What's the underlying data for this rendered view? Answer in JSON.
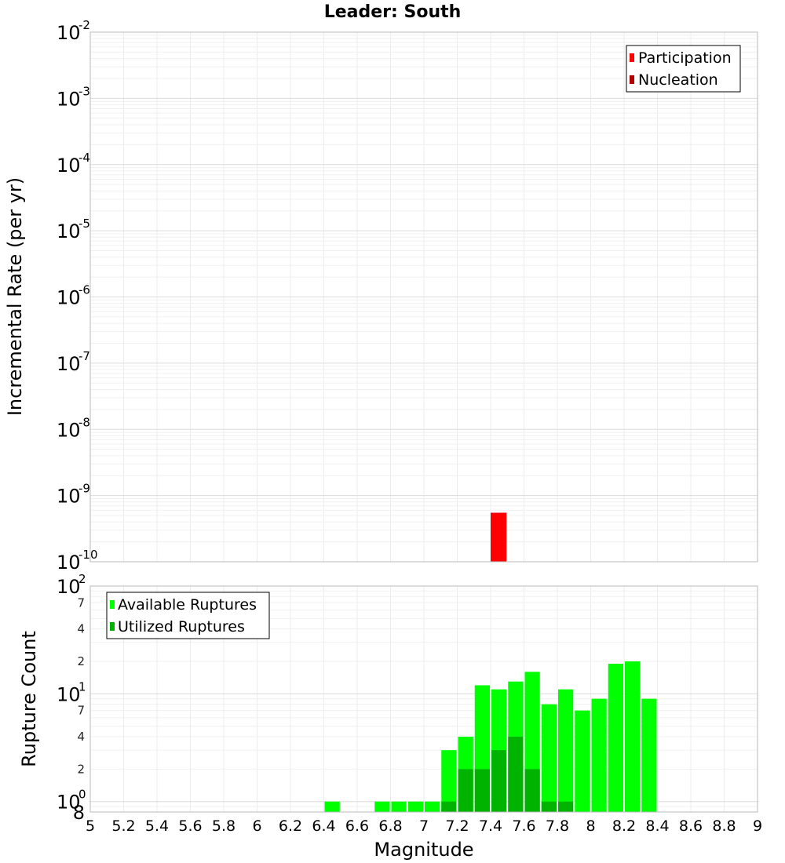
{
  "chart_data": [
    {
      "type": "bar",
      "title": "Leader: South",
      "xlabel": "",
      "ylabel": "Incremental Rate (per yr)",
      "y_scale": "log",
      "ylim": [
        1e-10,
        0.01
      ],
      "xlim": [
        5,
        9
      ],
      "grid": true,
      "legend_placement": "top-right",
      "x": [
        7.45
      ],
      "series": [
        {
          "name": "Participation",
          "color": "#ff0000",
          "values": [
            5.5e-10
          ]
        },
        {
          "name": "Nucleation",
          "color": "#b30000",
          "values": [
            0
          ]
        }
      ]
    },
    {
      "type": "bar",
      "title": "",
      "xlabel": "Magnitude",
      "ylabel": "Rupture Count",
      "y_scale": "log",
      "ylim": [
        0.8,
        100
      ],
      "xlim": [
        5,
        9
      ],
      "grid": true,
      "legend_placement": "top-left",
      "x": [
        6.45,
        6.75,
        6.85,
        6.95,
        7.05,
        7.15,
        7.25,
        7.35,
        7.45,
        7.55,
        7.65,
        7.75,
        7.85,
        7.95,
        8.05,
        8.15,
        8.25,
        8.35
      ],
      "series": [
        {
          "name": "Available Ruptures",
          "color": "#00ff00",
          "values": [
            1,
            1,
            1,
            1,
            1,
            3,
            4,
            12,
            11,
            13,
            16,
            8,
            11,
            7,
            9,
            19,
            20,
            9
          ]
        },
        {
          "name": "Utilized Ruptures",
          "color": "#00b300",
          "values": [
            0,
            0,
            0,
            0,
            0,
            1,
            2,
            2,
            3,
            4,
            2,
            1,
            1,
            0,
            0,
            0,
            0,
            0
          ]
        }
      ]
    }
  ],
  "x_tick_labels": [
    "5",
    "5.2",
    "5.4",
    "5.6",
    "5.8",
    "6",
    "6.2",
    "6.4",
    "6.6",
    "6.8",
    "7",
    "7.2",
    "7.4",
    "7.6",
    "7.8",
    "8",
    "8.2",
    "8.4",
    "8.6",
    "8.8",
    "9"
  ],
  "top_y_ticks": [
    {
      "base": "10",
      "exp": "-2"
    },
    {
      "base": "10",
      "exp": "-3"
    },
    {
      "base": "10",
      "exp": "-4"
    },
    {
      "base": "10",
      "exp": "-5"
    },
    {
      "base": "10",
      "exp": "-6"
    },
    {
      "base": "10",
      "exp": "-7"
    },
    {
      "base": "10",
      "exp": "-8"
    },
    {
      "base": "10",
      "exp": "-9"
    },
    {
      "base": "10",
      "exp": "-10"
    }
  ],
  "bottom_y_major_ticks": [
    {
      "value": 100,
      "base": "10",
      "exp": "2"
    },
    {
      "value": 10,
      "base": "10",
      "exp": "1"
    },
    {
      "value": 1,
      "base": "10",
      "exp": "0"
    }
  ],
  "bottom_y_minor_ticks": [
    {
      "value": 70,
      "label": "7"
    },
    {
      "value": 40,
      "label": "4"
    },
    {
      "value": 20,
      "label": "2"
    },
    {
      "value": 7,
      "label": "7"
    },
    {
      "value": 4,
      "label": "4"
    },
    {
      "value": 2,
      "label": "2"
    },
    {
      "value": 0.8,
      "label": "8"
    }
  ]
}
